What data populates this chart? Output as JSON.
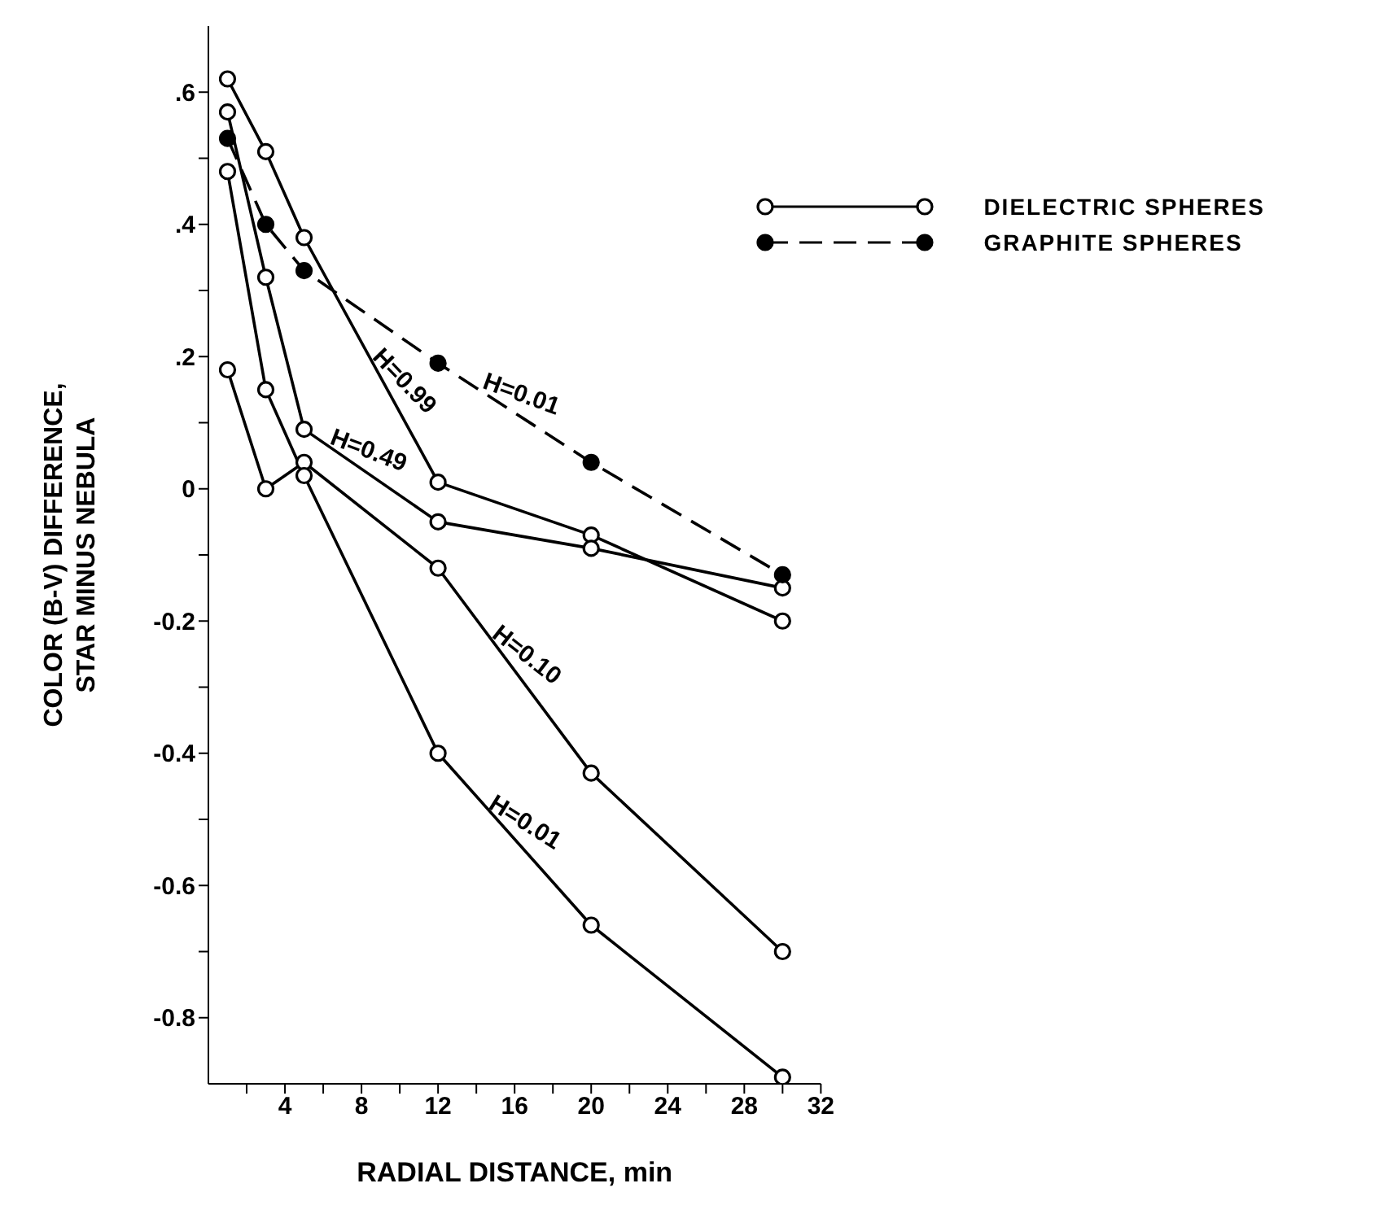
{
  "chart_data": {
    "type": "line",
    "xlabel": "RADIAL DISTANCE, min",
    "ylabel": "COLOR (B-V) DIFFERENCE,\nSTAR MINUS NEBULA",
    "xlim": [
      0,
      32
    ],
    "xticks": [
      {
        "value": 2,
        "label": null
      },
      4,
      {
        "value": 6,
        "label": null
      },
      8,
      {
        "value": 10,
        "label": null
      },
      12,
      {
        "value": 14,
        "label": null
      },
      16,
      {
        "value": 18,
        "label": null
      },
      20,
      {
        "value": 22,
        "label": null
      },
      24,
      {
        "value": 26,
        "label": null
      },
      28,
      {
        "value": 30,
        "label": null
      },
      32
    ],
    "ylim": [
      -0.9,
      0.7
    ],
    "yticks": [
      {
        "value": -0.8,
        "label": "-0.8"
      },
      {
        "value": -0.7,
        "label": null
      },
      {
        "value": -0.6,
        "label": "-0.6"
      },
      {
        "value": -0.5,
        "label": null
      },
      {
        "value": -0.4,
        "label": "-0.4"
      },
      {
        "value": -0.3,
        "label": null
      },
      {
        "value": -0.2,
        "label": "-0.2"
      },
      {
        "value": -0.1,
        "label": null
      },
      0,
      {
        "value": 0.1,
        "label": null
      },
      {
        "value": 0.2,
        "label": ".2"
      },
      {
        "value": 0.3,
        "label": null
      },
      {
        "value": 0.4,
        "label": ".4"
      },
      {
        "value": 0.5,
        "label": null
      },
      {
        "value": 0.6,
        "label": ".6"
      }
    ],
    "grid": false,
    "legend": "top right",
    "marker": "circle",
    "series": [
      {
        "name": "DIELECTRIC SPHERES",
        "color": "#000000",
        "line_style": "solid",
        "x": [
          1,
          3,
          5,
          12,
          20,
          30
        ],
        "values": [
          0.62,
          0.51,
          0.38,
          0.01,
          -0.07,
          -0.2
        ]
      },
      {
        "color": "#000000",
        "line_style": "solid",
        "x": [
          1,
          3,
          5,
          12,
          20,
          30
        ],
        "values": [
          0.57,
          0.32,
          0.09,
          -0.05,
          -0.09,
          -0.15
        ]
      },
      {
        "color": "#000000",
        "line_style": "solid",
        "x": [
          1,
          3,
          5,
          12,
          20,
          30
        ],
        "values": [
          0.18,
          0,
          0.04,
          -0.12,
          -0.43,
          -0.7
        ]
      },
      {
        "color": "#000000",
        "line_style": "solid",
        "x": [
          1,
          3,
          5,
          12,
          20,
          30
        ],
        "values": [
          0.48,
          0.15,
          0.02,
          -0.4,
          -0.66,
          -0.89
        ]
      },
      {
        "name": "GRAPHITE SPHERES",
        "color": "#000000",
        "line_style": "dashed",
        "x": [
          1,
          3,
          5,
          12,
          20,
          30
        ],
        "values": [
          0.53,
          0.4,
          0.33,
          0.19,
          0.04,
          -0.13
        ]
      }
    ],
    "annotations": [
      {
        "text": "H=0.99",
        "x": 9.5,
        "y": 0.142
      },
      {
        "text": "H=0.01",
        "x": 16,
        "y": 0.115
      },
      {
        "text": "H=0.49",
        "x": 8,
        "y": 0.03
      },
      {
        "text": "H=0.10",
        "x": 16,
        "y": -0.275
      },
      {
        "text": "H=0.01",
        "x": 16,
        "y": -0.53
      }
    ]
  }
}
